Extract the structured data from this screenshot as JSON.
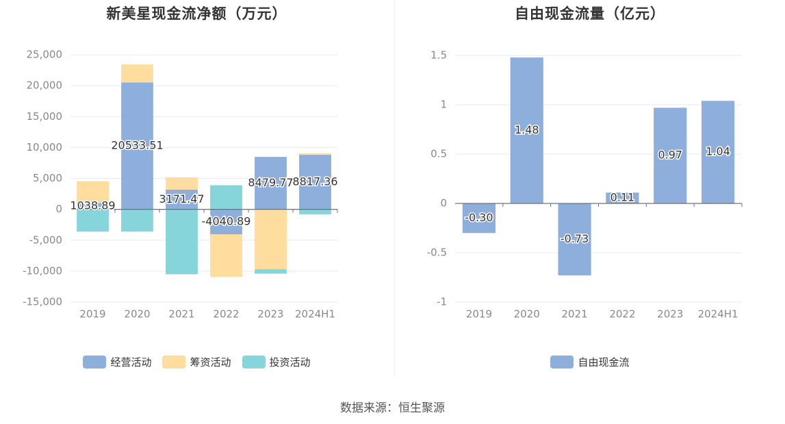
{
  "source_text": "数据来源：恒生聚源",
  "chart_data": [
    {
      "type": "bar",
      "stacked": true,
      "title": "新美星现金流净额（万元）",
      "categories": [
        "2019",
        "2020",
        "2021",
        "2022",
        "2023",
        "2024H1"
      ],
      "ylim": [
        -15000,
        25000
      ],
      "yticks": [
        25000,
        20000,
        15000,
        10000,
        5000,
        0,
        -5000,
        -10000,
        -15000
      ],
      "ytick_labels": [
        "25,000",
        "20,000",
        "15,000",
        "10,000",
        "5,000",
        "0",
        "-5,000",
        "-10,000",
        "-15,000"
      ],
      "grid": true,
      "legend_position": "bottom",
      "series": [
        {
          "name": "经营活动",
          "color": "#8eaedb",
          "values": [
            1038.89,
            20533.51,
            3171.47,
            -4040.89,
            8479.77,
            8817.36
          ]
        },
        {
          "name": "筹资活动",
          "color": "#fedd9e",
          "values": [
            3500,
            2900,
            2000,
            -6900,
            -9700,
            250
          ]
        },
        {
          "name": "投资活动",
          "color": "#86d5da",
          "values": [
            -3600,
            -3600,
            -10500,
            3900,
            -700,
            -800
          ]
        }
      ],
      "data_labels": [
        "1038.89",
        "20533.51",
        "3171.47",
        "-4040.89",
        "8479.77",
        "8817.36"
      ]
    },
    {
      "type": "bar",
      "title": "自由现金流量（亿元）",
      "categories": [
        "2019",
        "2020",
        "2021",
        "2022",
        "2023",
        "2024H1"
      ],
      "ylim": [
        -1,
        1.5
      ],
      "yticks": [
        1.5,
        1,
        0.5,
        0,
        -0.5,
        -1
      ],
      "ytick_labels": [
        "1.5",
        "1",
        "0.5",
        "0",
        "-0.5",
        "-1"
      ],
      "grid": true,
      "legend_position": "bottom",
      "series": [
        {
          "name": "自由现金流",
          "color": "#8eaedb",
          "values": [
            -0.3,
            1.48,
            -0.73,
            0.11,
            0.97,
            1.04
          ]
        }
      ],
      "data_labels": [
        "-0.30",
        "1.48",
        "-0.73",
        "0.11",
        "0.97",
        "1.04"
      ]
    }
  ]
}
